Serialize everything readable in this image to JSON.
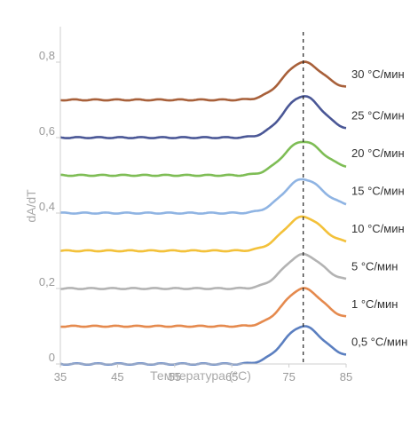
{
  "chart_data": {
    "type": "line",
    "xlabel": "Температура (°C)",
    "ylabel": "dA/dT",
    "xlim": [
      35,
      85
    ],
    "ylim": [
      0,
      0.8
    ],
    "x_ticks": [
      "35",
      "45",
      "55",
      "65",
      "75",
      "85"
    ],
    "y_ticks": [
      "0",
      "0,2",
      "0,4",
      "0,6",
      "0,8"
    ],
    "reference_line": {
      "x": 77.5,
      "style": "dashed"
    },
    "grid": false,
    "series": [
      {
        "name": "0,5 °C/мин",
        "color": "#5b7fc0",
        "baseline": 0.0,
        "peak": 0.1,
        "end": 0.02,
        "x": [
          35,
          45,
          55,
          65,
          70,
          75,
          77.5,
          80,
          85
        ],
        "y": [
          0.0,
          0.0,
          0.0,
          0.0,
          0.01,
          0.06,
          0.1,
          0.08,
          0.02
        ]
      },
      {
        "name": "1 °C/мин",
        "color": "#e58a4e",
        "baseline": 0.1,
        "peak": 0.2,
        "end": 0.12,
        "x": [
          35,
          45,
          55,
          65,
          70,
          75,
          77.5,
          80,
          85
        ],
        "y": [
          0.1,
          0.1,
          0.1,
          0.1,
          0.11,
          0.16,
          0.2,
          0.18,
          0.12
        ]
      },
      {
        "name": "5 °C/мин",
        "color": "#b3b3b3",
        "baseline": 0.2,
        "peak": 0.29,
        "end": 0.22,
        "x": [
          35,
          45,
          55,
          65,
          70,
          75,
          77.5,
          80,
          85
        ],
        "y": [
          0.2,
          0.2,
          0.2,
          0.2,
          0.21,
          0.26,
          0.29,
          0.27,
          0.22
        ]
      },
      {
        "name": "10 °C/мин",
        "color": "#f3c13a",
        "baseline": 0.3,
        "peak": 0.39,
        "end": 0.32,
        "x": [
          35,
          45,
          55,
          65,
          70,
          75,
          77.5,
          80,
          85
        ],
        "y": [
          0.3,
          0.3,
          0.3,
          0.3,
          0.31,
          0.36,
          0.39,
          0.37,
          0.32
        ]
      },
      {
        "name": "15 °C/мин",
        "color": "#8fb4e3",
        "baseline": 0.4,
        "peak": 0.49,
        "end": 0.42,
        "x": [
          35,
          45,
          55,
          65,
          70,
          75,
          77.5,
          80,
          85
        ],
        "y": [
          0.4,
          0.4,
          0.4,
          0.4,
          0.41,
          0.46,
          0.49,
          0.47,
          0.42
        ]
      },
      {
        "name": "20 °C/мин",
        "color": "#7ebd55",
        "baseline": 0.5,
        "peak": 0.59,
        "end": 0.52,
        "x": [
          35,
          45,
          55,
          65,
          70,
          75,
          77.5,
          80,
          85
        ],
        "y": [
          0.5,
          0.5,
          0.5,
          0.5,
          0.51,
          0.56,
          0.59,
          0.57,
          0.52
        ]
      },
      {
        "name": "25 °C/мин",
        "color": "#4a5796",
        "baseline": 0.6,
        "peak": 0.71,
        "end": 0.62,
        "x": [
          35,
          45,
          55,
          65,
          70,
          75,
          77.5,
          80,
          85
        ],
        "y": [
          0.6,
          0.6,
          0.6,
          0.6,
          0.61,
          0.67,
          0.71,
          0.68,
          0.62
        ]
      },
      {
        "name": "30 °C/мин",
        "color": "#a8603a",
        "baseline": 0.7,
        "peak": 0.8,
        "end": 0.73,
        "x": [
          35,
          45,
          55,
          65,
          70,
          75,
          77.5,
          80,
          85
        ],
        "y": [
          0.7,
          0.7,
          0.7,
          0.7,
          0.71,
          0.77,
          0.8,
          0.78,
          0.73
        ]
      }
    ]
  }
}
